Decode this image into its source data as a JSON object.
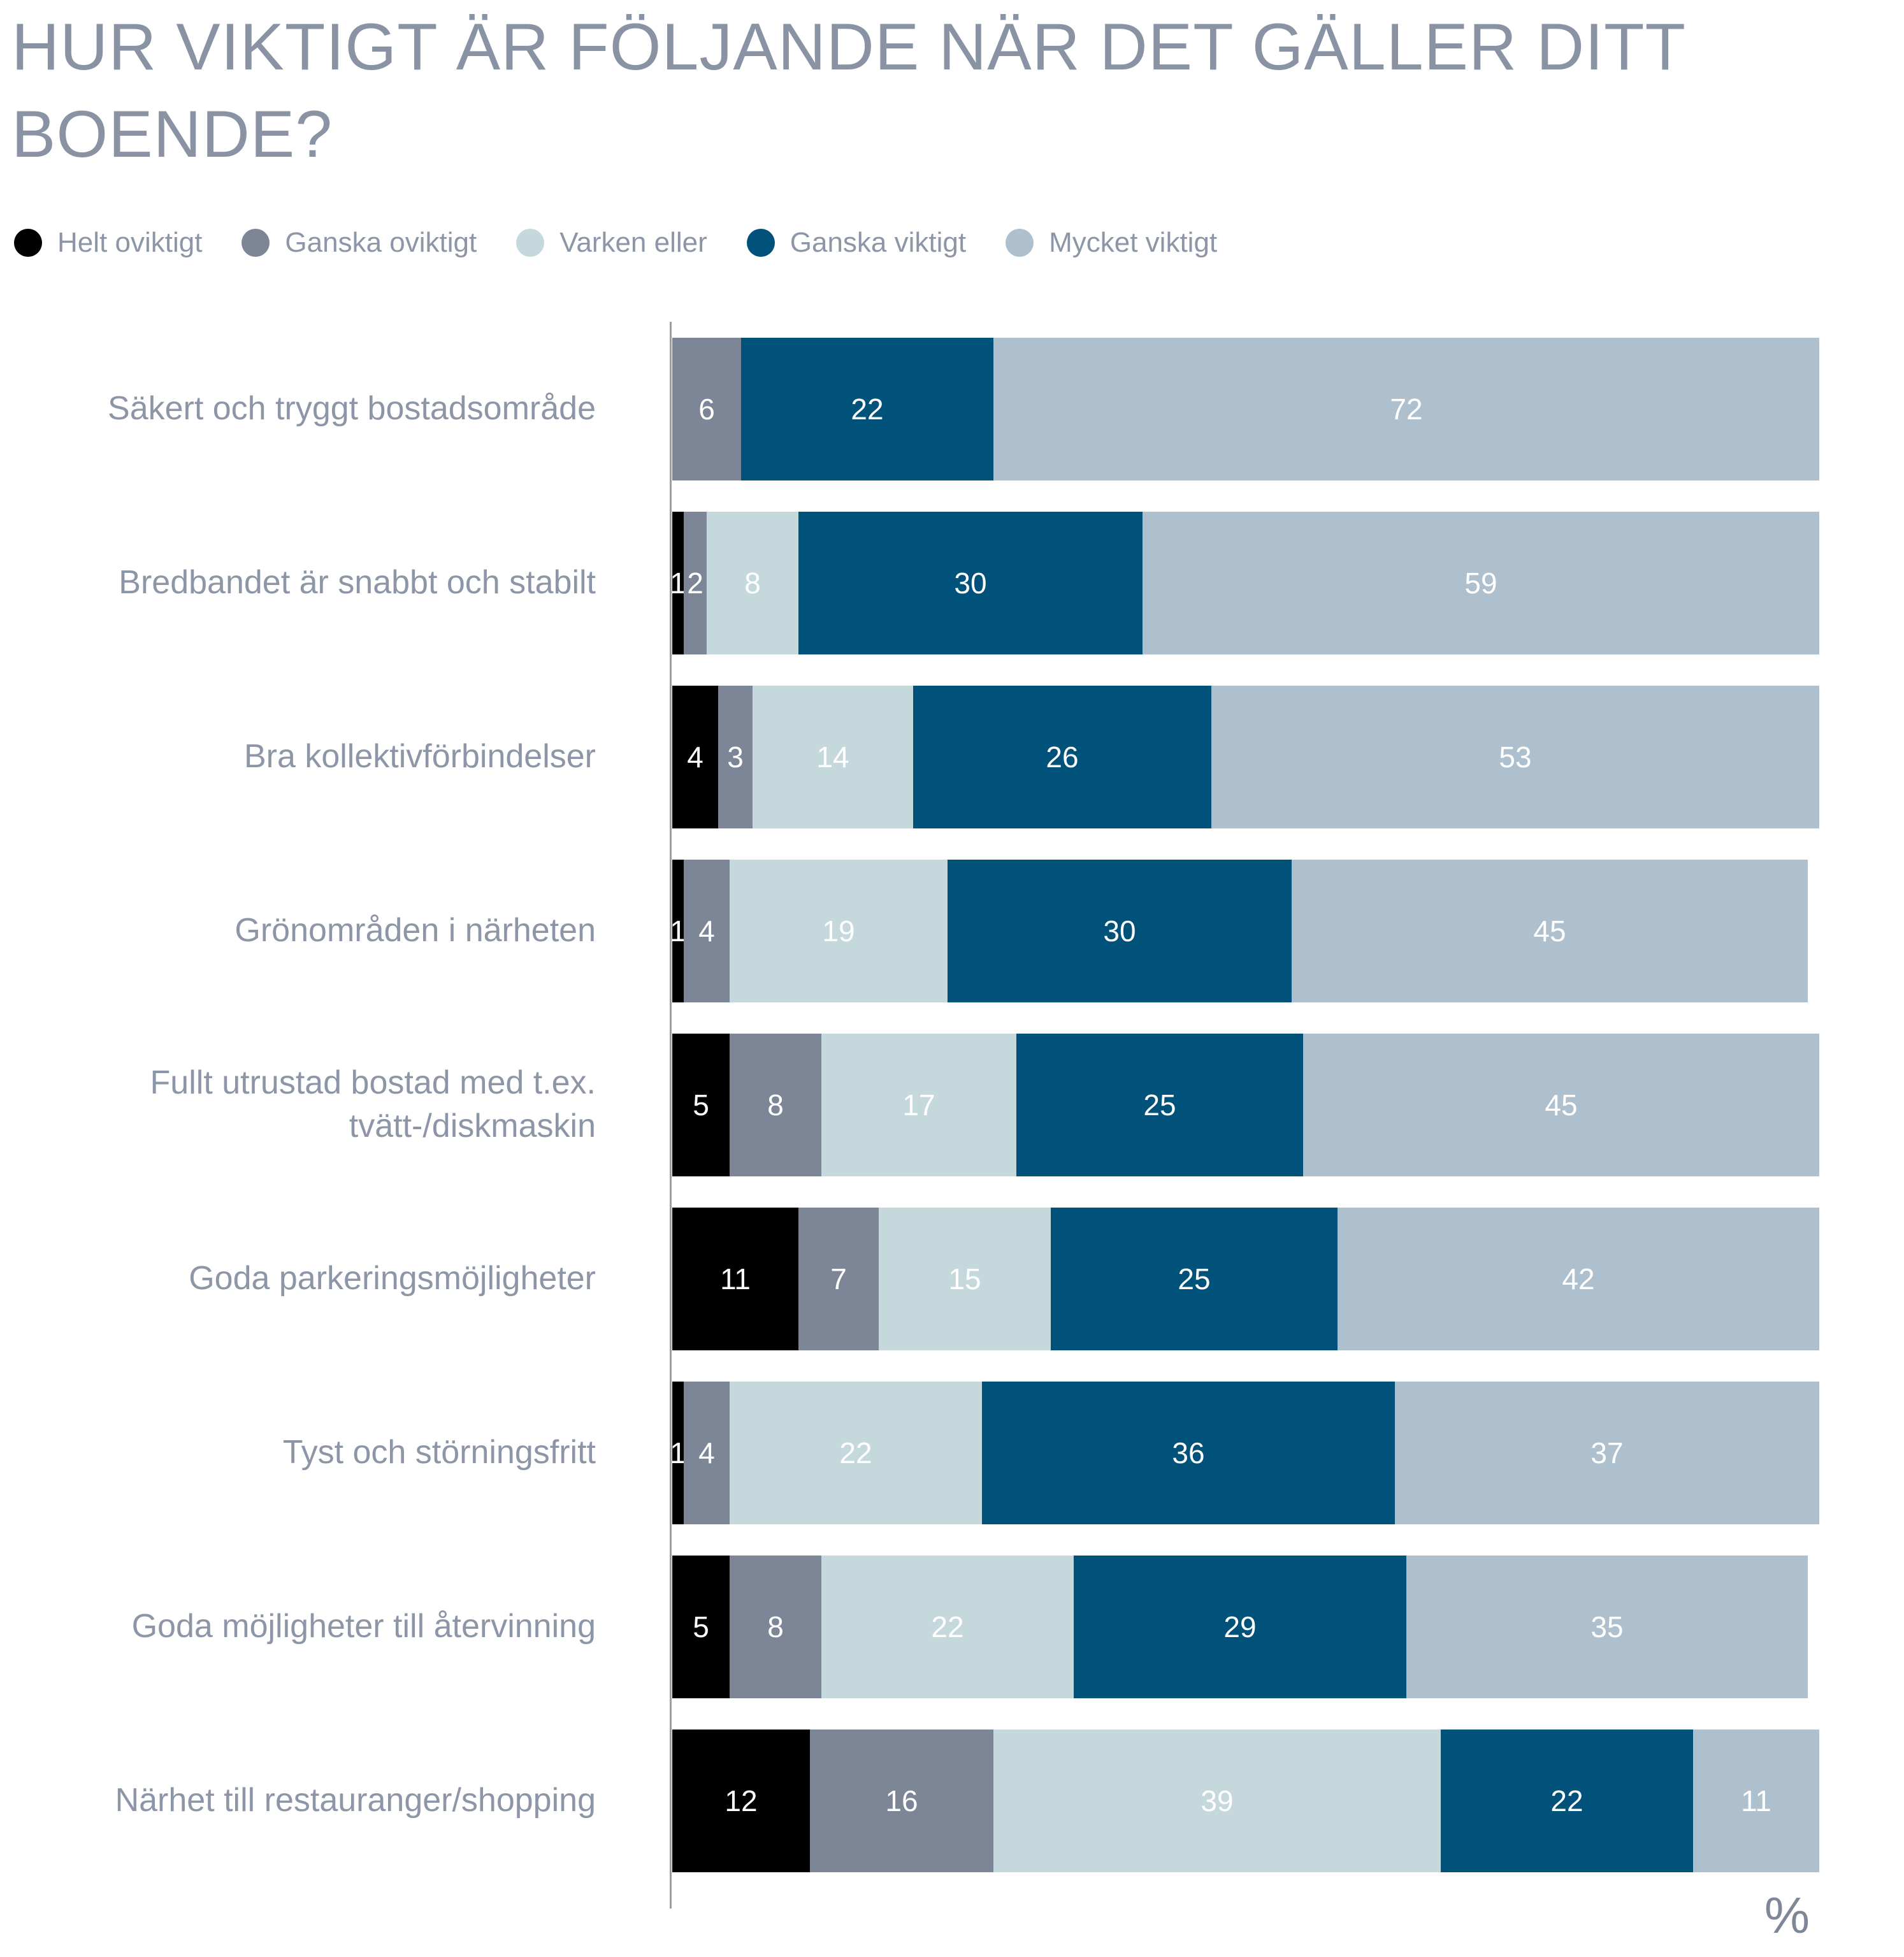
{
  "title": "HUR VIKTIGT ÄR FÖLJANDE NÄR DET GÄLLER DITT BOENDE?",
  "colors": {
    "title_text": "#8a93a4",
    "category_label_text": "#8d96a6",
    "segment_value_text": "#ffffff",
    "axis_line": "#9aa0a0",
    "unit_label_text": "#7e8796"
  },
  "chart_data": {
    "type": "bar",
    "orientation": "horizontal",
    "stacked": true,
    "title": "HUR VIKTIGT ÄR FÖLJANDE NÄR DET GÄLLER DITT BOENDE?",
    "unit": "%",
    "xlim": [
      0,
      100
    ],
    "grid": false,
    "legend_position": "top",
    "categories": [
      "Säkert och tryggt bostadsområde",
      "Bredbandet är snabbt och stabilt",
      "Bra kollektivförbindelser",
      "Grönområden i närheten",
      "Fullt utrustad bostad med t.ex. tvätt-/diskmaskin",
      "Goda parkeringsmöjligheter",
      "Tyst och störningsfritt",
      "Goda möjligheter till återvinning",
      "Närhet till restauranger/shopping"
    ],
    "series": [
      {
        "name": "Helt oviktigt",
        "color": "#000000",
        "values": [
          0,
          1,
          4,
          1,
          5,
          11,
          1,
          5,
          12
        ]
      },
      {
        "name": "Ganska oviktigt",
        "color": "#7d8697",
        "values": [
          6,
          2,
          3,
          4,
          8,
          7,
          4,
          8,
          16
        ]
      },
      {
        "name": "Varken eller",
        "color": "#c5d9dd",
        "values": [
          0,
          8,
          14,
          19,
          17,
          15,
          22,
          22,
          39
        ]
      },
      {
        "name": "Ganska viktigt",
        "color": "#00527b",
        "values": [
          22,
          30,
          26,
          30,
          25,
          25,
          36,
          29,
          22
        ]
      },
      {
        "name": "Mycket viktigt",
        "color": "#aec0cd",
        "values": [
          72,
          59,
          53,
          45,
          45,
          42,
          37,
          35,
          11
        ]
      }
    ]
  }
}
